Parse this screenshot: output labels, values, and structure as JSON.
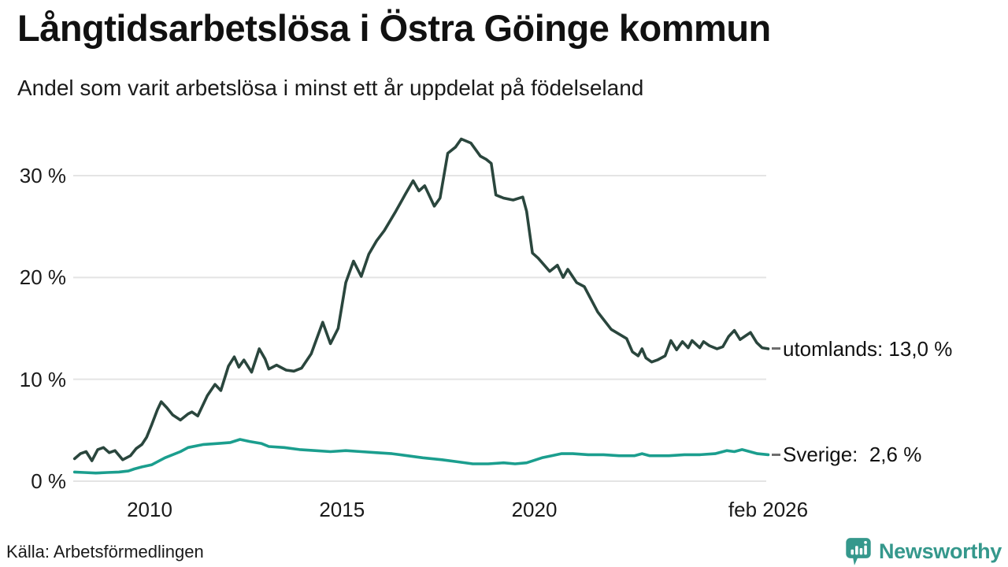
{
  "header": {
    "title": "Långtidsarbetslösa i Östra Göinge kommun",
    "subtitle": "Andel som varit arbetslösa i minst ett år uppdelat på födelseland"
  },
  "footer": {
    "source": "Källa: Arbetsförmedlingen",
    "brand": "Newsworthy",
    "brand_color": "#35988c"
  },
  "colors": {
    "grid": "#e4e4e4",
    "text": "#1a1a1a",
    "utomlands_line": "#2a463d",
    "sverige_line": "#1b9e8e"
  },
  "chart_data": {
    "type": "line",
    "title": "Långtidsarbetslösa i Östra Göinge kommun",
    "subtitle": "Andel som varit arbetslösa i minst ett år uppdelat på födelseland",
    "xlabel": "",
    "ylabel": "",
    "xlim": [
      2008.0,
      2026.2
    ],
    "ylim": [
      0,
      34
    ],
    "grid": "horizontal",
    "legend_position": "right-end-labels",
    "y_ticks": [
      {
        "label": "30 %",
        "value": 30
      },
      {
        "label": "20 %",
        "value": 20
      },
      {
        "label": "10 %",
        "value": 10
      },
      {
        "label": "0 %",
        "value": 0
      }
    ],
    "x_ticks": [
      {
        "label": "2010",
        "year": 2010
      },
      {
        "label": "2015",
        "year": 2015
      },
      {
        "label": "2020",
        "year": 2020
      },
      {
        "label": "feb 2026",
        "year": 2026.08
      }
    ],
    "series": [
      {
        "name": "utomlands",
        "label": "utomlands: 13,0 %",
        "end_value": "13,0 %",
        "color": "#2a463d",
        "points": [
          [
            2008.05,
            2.2
          ],
          [
            2008.2,
            2.7
          ],
          [
            2008.35,
            2.9
          ],
          [
            2008.5,
            2.0
          ],
          [
            2008.65,
            3.1
          ],
          [
            2008.8,
            3.3
          ],
          [
            2008.95,
            2.8
          ],
          [
            2009.1,
            3.0
          ],
          [
            2009.3,
            2.1
          ],
          [
            2009.5,
            2.5
          ],
          [
            2009.65,
            3.2
          ],
          [
            2009.8,
            3.6
          ],
          [
            2009.92,
            4.3
          ],
          [
            2010.05,
            5.5
          ],
          [
            2010.2,
            7.0
          ],
          [
            2010.3,
            7.8
          ],
          [
            2010.45,
            7.2
          ],
          [
            2010.6,
            6.5
          ],
          [
            2010.8,
            6.0
          ],
          [
            2011.0,
            6.6
          ],
          [
            2011.1,
            6.8
          ],
          [
            2011.25,
            6.4
          ],
          [
            2011.5,
            8.4
          ],
          [
            2011.7,
            9.5
          ],
          [
            2011.85,
            8.9
          ],
          [
            2012.05,
            11.3
          ],
          [
            2012.2,
            12.2
          ],
          [
            2012.32,
            11.2
          ],
          [
            2012.45,
            11.9
          ],
          [
            2012.65,
            10.7
          ],
          [
            2012.85,
            13.0
          ],
          [
            2013.0,
            12.0
          ],
          [
            2013.1,
            11.0
          ],
          [
            2013.3,
            11.4
          ],
          [
            2013.55,
            10.9
          ],
          [
            2013.75,
            10.8
          ],
          [
            2013.95,
            11.1
          ],
          [
            2014.2,
            12.5
          ],
          [
            2014.5,
            15.6
          ],
          [
            2014.7,
            13.5
          ],
          [
            2014.9,
            15.0
          ],
          [
            2015.1,
            19.5
          ],
          [
            2015.3,
            21.6
          ],
          [
            2015.5,
            20.1
          ],
          [
            2015.7,
            22.3
          ],
          [
            2015.9,
            23.6
          ],
          [
            2016.1,
            24.6
          ],
          [
            2016.4,
            26.5
          ],
          [
            2016.65,
            28.2
          ],
          [
            2016.85,
            29.5
          ],
          [
            2017.0,
            28.5
          ],
          [
            2017.15,
            29.0
          ],
          [
            2017.4,
            27.0
          ],
          [
            2017.55,
            27.8
          ],
          [
            2017.75,
            32.2
          ],
          [
            2017.95,
            32.8
          ],
          [
            2018.1,
            33.6
          ],
          [
            2018.35,
            33.2
          ],
          [
            2018.6,
            31.9
          ],
          [
            2018.75,
            31.6
          ],
          [
            2018.88,
            31.2
          ],
          [
            2019.0,
            28.1
          ],
          [
            2019.2,
            27.8
          ],
          [
            2019.45,
            27.6
          ],
          [
            2019.7,
            27.9
          ],
          [
            2019.8,
            26.5
          ],
          [
            2019.95,
            22.4
          ],
          [
            2020.1,
            21.9
          ],
          [
            2020.4,
            20.6
          ],
          [
            2020.6,
            21.2
          ],
          [
            2020.75,
            20.0
          ],
          [
            2020.87,
            20.8
          ],
          [
            2021.1,
            19.5
          ],
          [
            2021.3,
            19.1
          ],
          [
            2021.65,
            16.6
          ],
          [
            2022.0,
            14.9
          ],
          [
            2022.4,
            14.0
          ],
          [
            2022.55,
            12.7
          ],
          [
            2022.7,
            12.3
          ],
          [
            2022.8,
            13.0
          ],
          [
            2022.9,
            12.1
          ],
          [
            2023.05,
            11.7
          ],
          [
            2023.2,
            11.9
          ],
          [
            2023.4,
            12.3
          ],
          [
            2023.55,
            13.8
          ],
          [
            2023.7,
            12.9
          ],
          [
            2023.85,
            13.7
          ],
          [
            2024.0,
            13.1
          ],
          [
            2024.1,
            13.8
          ],
          [
            2024.3,
            13.1
          ],
          [
            2024.4,
            13.7
          ],
          [
            2024.55,
            13.3
          ],
          [
            2024.75,
            13.0
          ],
          [
            2024.9,
            13.2
          ],
          [
            2025.05,
            14.2
          ],
          [
            2025.2,
            14.8
          ],
          [
            2025.35,
            13.9
          ],
          [
            2025.5,
            14.3
          ],
          [
            2025.62,
            14.6
          ],
          [
            2025.78,
            13.6
          ],
          [
            2025.92,
            13.1
          ],
          [
            2026.08,
            13.0
          ]
        ]
      },
      {
        "name": "Sverige",
        "label": "Sverige:  2,6 %",
        "end_value": "2,6 %",
        "color": "#1b9e8e",
        "points": [
          [
            2008.05,
            0.9
          ],
          [
            2008.3,
            0.85
          ],
          [
            2008.6,
            0.8
          ],
          [
            2008.9,
            0.85
          ],
          [
            2009.2,
            0.9
          ],
          [
            2009.45,
            1.0
          ],
          [
            2009.6,
            1.2
          ],
          [
            2009.8,
            1.4
          ],
          [
            2010.05,
            1.6
          ],
          [
            2010.4,
            2.3
          ],
          [
            2010.8,
            2.9
          ],
          [
            2011.0,
            3.3
          ],
          [
            2011.4,
            3.6
          ],
          [
            2011.8,
            3.7
          ],
          [
            2012.1,
            3.8
          ],
          [
            2012.35,
            4.1
          ],
          [
            2012.6,
            3.9
          ],
          [
            2012.9,
            3.7
          ],
          [
            2013.1,
            3.4
          ],
          [
            2013.5,
            3.3
          ],
          [
            2013.9,
            3.1
          ],
          [
            2014.3,
            3.0
          ],
          [
            2014.7,
            2.9
          ],
          [
            2015.1,
            3.0
          ],
          [
            2015.5,
            2.9
          ],
          [
            2015.9,
            2.8
          ],
          [
            2016.3,
            2.7
          ],
          [
            2016.7,
            2.5
          ],
          [
            2017.1,
            2.3
          ],
          [
            2017.6,
            2.1
          ],
          [
            2018.0,
            1.9
          ],
          [
            2018.4,
            1.7
          ],
          [
            2018.8,
            1.7
          ],
          [
            2019.2,
            1.8
          ],
          [
            2019.5,
            1.7
          ],
          [
            2019.8,
            1.8
          ],
          [
            2020.2,
            2.3
          ],
          [
            2020.45,
            2.5
          ],
          [
            2020.7,
            2.7
          ],
          [
            2021.0,
            2.7
          ],
          [
            2021.4,
            2.6
          ],
          [
            2021.8,
            2.6
          ],
          [
            2022.2,
            2.5
          ],
          [
            2022.6,
            2.5
          ],
          [
            2022.8,
            2.7
          ],
          [
            2023.0,
            2.5
          ],
          [
            2023.5,
            2.5
          ],
          [
            2023.9,
            2.6
          ],
          [
            2024.3,
            2.6
          ],
          [
            2024.7,
            2.7
          ],
          [
            2025.0,
            3.0
          ],
          [
            2025.2,
            2.9
          ],
          [
            2025.4,
            3.1
          ],
          [
            2025.6,
            2.9
          ],
          [
            2025.8,
            2.7
          ],
          [
            2026.08,
            2.6
          ]
        ]
      }
    ]
  }
}
